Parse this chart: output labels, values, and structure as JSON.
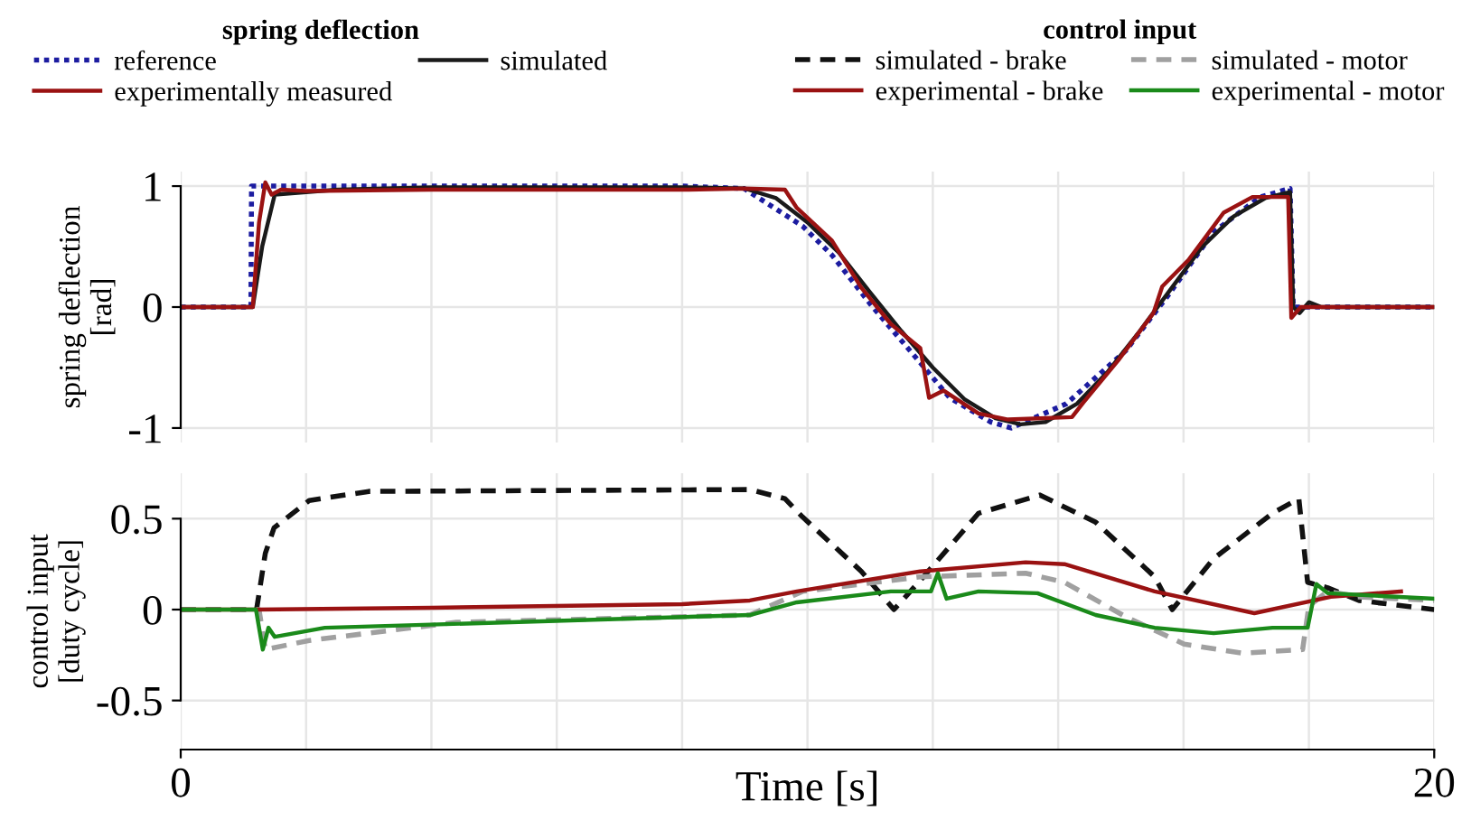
{
  "chart_data": [
    {
      "type": "line",
      "ylabel": "spring deflection\n[rad]",
      "legend_title": "spring deflection",
      "legend": "top left",
      "grid": true,
      "tick_labels": "y",
      "xlim": [
        0,
        20
      ],
      "xticks": [
        0,
        {
          "value": 2,
          "label": null
        },
        {
          "value": 4,
          "label": null
        },
        {
          "value": 6,
          "label": null
        },
        {
          "value": 8,
          "label": null
        },
        {
          "value": 10,
          "label": null
        },
        {
          "value": 12,
          "label": null
        },
        {
          "value": 14,
          "label": null
        },
        {
          "value": 16,
          "label": null
        },
        {
          "value": 18,
          "label": null
        },
        20
      ],
      "ylim": [
        -1.12,
        1.12
      ],
      "yticks": [
        -1,
        0,
        1
      ],
      "series": [
        {
          "name": "reference",
          "color": "#1c1ca0",
          "line_style": "dotted",
          "x": [
            0,
            1.12,
            1.13,
            4,
            8,
            8.99,
            9.92,
            10.39,
            11.04,
            11.8,
            12.27,
            12.92,
            13.25,
            14.13,
            15.08,
            15.73,
            16.48,
            17.22,
            17.7,
            17.75,
            20
          ],
          "values": [
            0,
            0,
            1,
            1,
            1,
            0.98,
            0.67,
            0.43,
            0,
            -0.46,
            -0.75,
            -0.95,
            -1,
            -0.8,
            -0.36,
            0.08,
            0.62,
            0.91,
            0.98,
            0,
            0
          ]
        },
        {
          "name": "simulated",
          "color": "#1a1a1a",
          "line_style": "solid",
          "x": [
            0,
            1.15,
            1.3,
            1.5,
            2,
            2.5,
            4,
            8,
            9.0,
            9.5,
            10,
            10.5,
            11,
            11.5,
            12,
            12.5,
            13,
            13.4,
            13.8,
            14.3,
            14.8,
            15.3,
            15.8,
            16.3,
            16.8,
            17.3,
            17.7,
            17.75,
            17.85,
            18,
            18.2,
            20
          ],
          "values": [
            0,
            0,
            0.5,
            0.93,
            0.95,
            0.97,
            0.99,
            0.99,
            0.98,
            0.9,
            0.7,
            0.45,
            0.12,
            -0.2,
            -0.5,
            -0.76,
            -0.92,
            -0.97,
            -0.95,
            -0.8,
            -0.53,
            -0.2,
            0.15,
            0.5,
            0.75,
            0.9,
            0.95,
            0,
            -0.05,
            0.04,
            0,
            0
          ]
        },
        {
          "name": "experimentally measured",
          "color": "#9a1212",
          "line_style": "solid",
          "x": [
            0,
            1.15,
            1.25,
            1.35,
            1.45,
            1.6,
            2,
            4,
            8,
            8.99,
            9.64,
            9.83,
            10.39,
            10.86,
            11.33,
            11.8,
            11.94,
            12.17,
            12.73,
            13.2,
            14.22,
            14.4,
            14.96,
            15.52,
            15.66,
            16.08,
            16.64,
            17.1,
            17.67,
            17.72,
            17.87,
            20
          ],
          "values": [
            0,
            0,
            0.7,
            1.03,
            0.93,
            0.97,
            0.96,
            0.97,
            0.97,
            0.98,
            0.97,
            0.82,
            0.55,
            0.16,
            -0.14,
            -0.34,
            -0.75,
            -0.69,
            -0.88,
            -0.93,
            -0.91,
            -0.79,
            -0.44,
            -0.05,
            0.17,
            0.39,
            0.78,
            0.91,
            0.91,
            -0.09,
            0,
            0
          ]
        }
      ]
    },
    {
      "type": "line",
      "xlabel": "Time [s]",
      "ylabel": "control input\n[duty cycle]",
      "legend_title": "control input",
      "legend": "top right",
      "grid": true,
      "xlim": [
        0,
        20
      ],
      "xticks": [
        0,
        {
          "value": 2,
          "label": null
        },
        {
          "value": 4,
          "label": null
        },
        {
          "value": 6,
          "label": null
        },
        {
          "value": 8,
          "label": null
        },
        {
          "value": 10,
          "label": null
        },
        {
          "value": 12,
          "label": null
        },
        {
          "value": 14,
          "label": null
        },
        {
          "value": 16,
          "label": null
        },
        {
          "value": 18,
          "label": null
        },
        20
      ],
      "ylim": [
        -0.77,
        0.75
      ],
      "yticks": [
        -0.5,
        0,
        0.5
      ],
      "series": [
        {
          "name": "simulated - brake",
          "color": "#111111",
          "line_style": "dashed",
          "x": [
            0,
            1.21,
            1.35,
            1.49,
            2.05,
            3.0,
            9.08,
            9.64,
            9.92,
            10.86,
            11.38,
            11.8,
            12.73,
            13.71,
            14.6,
            15.54,
            15.82,
            16.48,
            17.42,
            17.84,
            17.98,
            18.3,
            18.8,
            20
          ],
          "values": [
            0,
            0,
            0.31,
            0.45,
            0.6,
            0.65,
            0.66,
            0.61,
            0.51,
            0.21,
            0,
            0.16,
            0.53,
            0.63,
            0.48,
            0.18,
            0,
            0.28,
            0.53,
            0.61,
            0.15,
            0.12,
            0.05,
            0
          ]
        },
        {
          "name": "simulated - motor",
          "color": "#a0a0a0",
          "line_style": "dashed",
          "x": [
            0,
            1.25,
            1.35,
            2.05,
            4.4,
            9.08,
            9.92,
            11.8,
            13.48,
            14.1,
            15.08,
            16.01,
            16.94,
            17.9,
            18.0,
            18.3,
            18.8,
            20
          ],
          "values": [
            0,
            0,
            -0.22,
            -0.17,
            -0.07,
            -0.03,
            0.1,
            0.18,
            0.2,
            0.15,
            -0.04,
            -0.19,
            -0.24,
            -0.22,
            0.02,
            0.1,
            0.07,
            0.05
          ]
        },
        {
          "name": "experimental - brake",
          "color": "#9a1212",
          "line_style": "solid",
          "x": [
            0,
            1.2,
            4,
            8,
            9.08,
            9.83,
            11.8,
            13.48,
            14.1,
            15.54,
            17.13,
            18.35,
            19.47
          ],
          "values": [
            0,
            0,
            0.01,
            0.03,
            0.05,
            0.1,
            0.21,
            0.26,
            0.25,
            0.1,
            -0.02,
            0.07,
            0.1
          ]
        },
        {
          "name": "experimental - motor",
          "color": "#1a8a1a",
          "line_style": "solid",
          "x": [
            0,
            1.2,
            1.31,
            1.4,
            1.5,
            2.3,
            9.08,
            9.83,
            11.33,
            11.97,
            12.08,
            12.22,
            12.73,
            13.67,
            14.6,
            15.54,
            16.48,
            17.42,
            17.98,
            18.12,
            18.3,
            20
          ],
          "values": [
            0,
            0,
            -0.22,
            -0.1,
            -0.15,
            -0.1,
            -0.03,
            0.04,
            0.1,
            0.1,
            0.2,
            0.06,
            0.1,
            0.09,
            -0.03,
            -0.1,
            -0.13,
            -0.1,
            -0.1,
            0.14,
            0.09,
            0.06
          ]
        }
      ]
    }
  ]
}
